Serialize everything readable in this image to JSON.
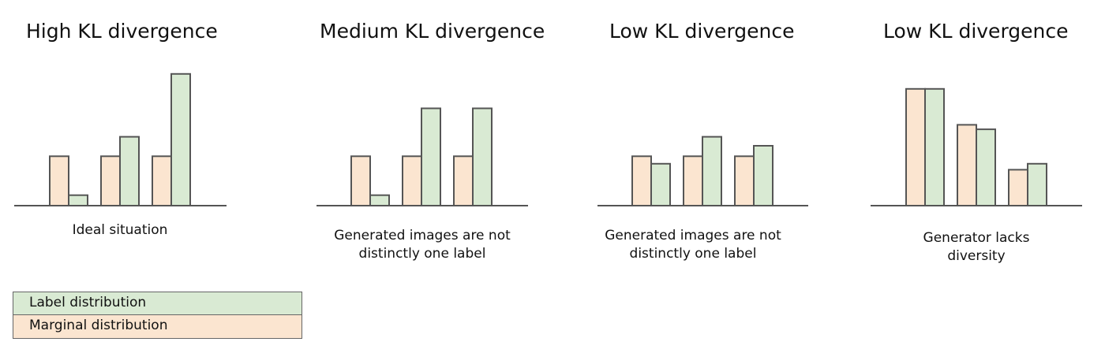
{
  "colors": {
    "label_distribution": "#d9ead3",
    "marginal_distribution": "#fbe5d0",
    "bar_stroke": "#555555",
    "axis": "#555555"
  },
  "legend": {
    "items": [
      {
        "label": "Label distribution",
        "color": "#d9ead3"
      },
      {
        "label": "Marginal distribution",
        "color": "#fbe5d0"
      }
    ]
  },
  "chart_data": [
    {
      "type": "bar",
      "title": "High KL divergence",
      "caption": "Ideal situation",
      "series": [
        {
          "name": "Marginal distribution",
          "values": [
            0.33,
            0.33,
            0.33
          ]
        },
        {
          "name": "Label distribution",
          "values": [
            0.07,
            0.46,
            0.88
          ]
        }
      ]
    },
    {
      "type": "bar",
      "title": "Medium KL divergence",
      "caption": "Generated images are not distinctly one label",
      "series": [
        {
          "name": "Marginal distribution",
          "values": [
            0.33,
            0.33,
            0.33
          ]
        },
        {
          "name": "Label distribution",
          "values": [
            0.07,
            0.65,
            0.65
          ]
        }
      ]
    },
    {
      "type": "bar",
      "title": "Low KL divergence",
      "caption": "Generated images are not distinctly one label",
      "series": [
        {
          "name": "Marginal distribution",
          "values": [
            0.33,
            0.33,
            0.33
          ]
        },
        {
          "name": "Label distribution",
          "values": [
            0.28,
            0.46,
            0.4
          ]
        }
      ]
    },
    {
      "type": "bar",
      "title": "Low KL divergence",
      "caption": "Generator lacks diversity",
      "series": [
        {
          "name": "Marginal distribution",
          "values": [
            0.78,
            0.54,
            0.24
          ]
        },
        {
          "name": "Label distribution",
          "values": [
            0.78,
            0.51,
            0.28
          ]
        }
      ]
    }
  ]
}
